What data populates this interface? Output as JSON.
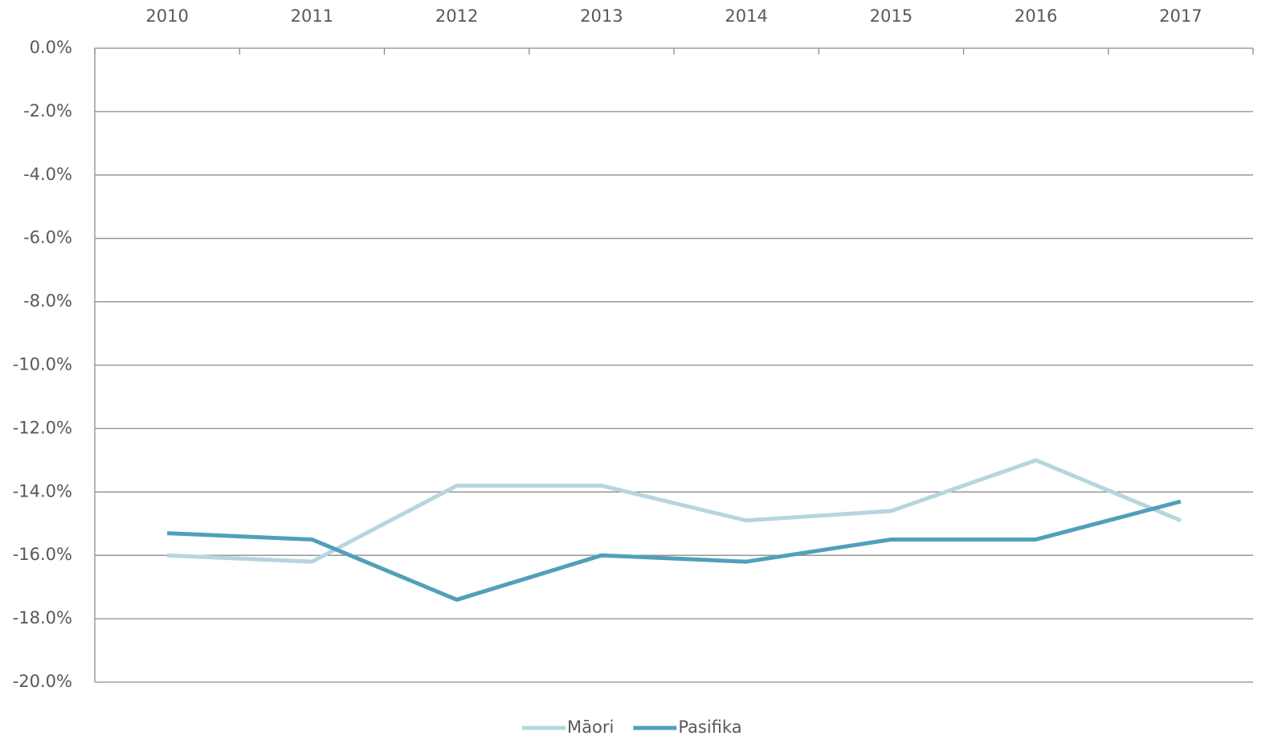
{
  "chart_data": {
    "type": "line",
    "categories": [
      "2010",
      "2011",
      "2012",
      "2013",
      "2014",
      "2015",
      "2016",
      "2017"
    ],
    "series": [
      {
        "name": "Māori",
        "color": "#b7d5de",
        "values": [
          -16.0,
          -16.2,
          -13.8,
          -13.8,
          -14.9,
          -14.6,
          -13.0,
          -14.9
        ]
      },
      {
        "name": "Pasifika",
        "color": "#529fba",
        "values": [
          -15.3,
          -15.5,
          -17.4,
          -16.0,
          -16.2,
          -15.5,
          -15.5,
          -14.3
        ]
      }
    ],
    "ylim": [
      -20,
      0
    ],
    "yticks": [
      {
        "value": 0,
        "label": "0.0%"
      },
      {
        "value": -2,
        "label": "-2.0%"
      },
      {
        "value": -4,
        "label": "-4.0%"
      },
      {
        "value": -6,
        "label": "-6.0%"
      },
      {
        "value": -8,
        "label": "-8.0%"
      },
      {
        "value": -10,
        "label": "-10.0%"
      },
      {
        "value": -12,
        "label": "-12.0%"
      },
      {
        "value": -14,
        "label": "-14.0%"
      },
      {
        "value": -16,
        "label": "-16.0%"
      },
      {
        "value": -18,
        "label": "-18.0%"
      },
      {
        "value": -20,
        "label": "-20.0%"
      }
    ],
    "grid": true,
    "legend": "bottom"
  }
}
